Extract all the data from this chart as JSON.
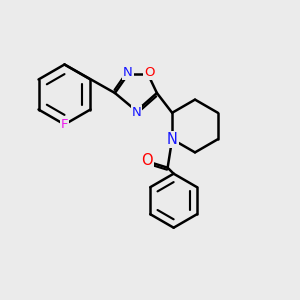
{
  "background_color": "#ebebeb",
  "bond_color": "#000000",
  "atom_colors": {
    "F": "#ed1aed",
    "N": "#1515ff",
    "O": "#ff0000",
    "C": "#000000"
  },
  "bond_width": 1.8,
  "font_size_atom": 9.5,
  "fig_size": [
    3.0,
    3.0
  ],
  "dpi": 100
}
